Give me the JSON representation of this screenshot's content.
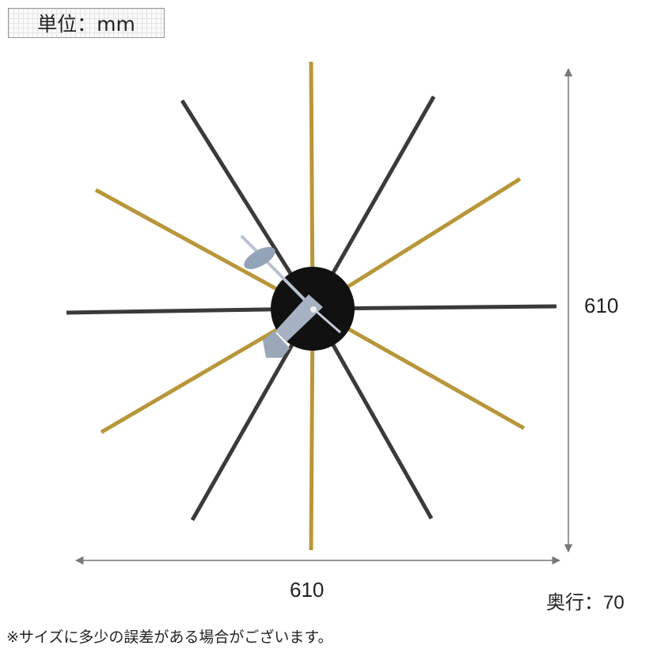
{
  "unit_label": "単位：mm",
  "dimensions": {
    "height": "610",
    "width": "610",
    "depth": "奥行：70"
  },
  "note": "※サイズに多少の誤差がある場合がございます。",
  "colors": {
    "gold": "#b8963a",
    "chrome": "#3a3a3a",
    "hub": "#111111",
    "hands": "#9aa7b8",
    "dimension_line": "#777777"
  }
}
